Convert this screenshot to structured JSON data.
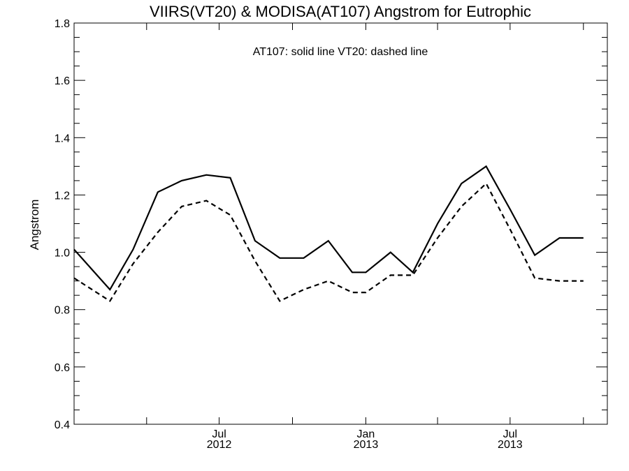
{
  "chart_data": {
    "type": "line",
    "title": "VIIRS(VT20) & MODISA(AT107)  Angstrom for Eutrophic",
    "annotation": "AT107: solid line   VT20: dashed line",
    "ylabel": "Angstrom",
    "xlabel": "",
    "ylim": [
      0.4,
      1.8
    ],
    "yticks": [
      0.4,
      0.6,
      0.8,
      1.0,
      1.2,
      1.4,
      1.6,
      1.8
    ],
    "ytick_labels": [
      "0.4",
      "0.6",
      "0.8",
      "1.0",
      "1.2",
      "1.4",
      "1.6",
      "1.8"
    ],
    "xlim": [
      "2012-01-01",
      "2013-10-31"
    ],
    "xticks": [
      {
        "date": "2012-07-01",
        "label1": "Jul",
        "label2": "2012"
      },
      {
        "date": "2013-01-01",
        "label1": "Jan",
        "label2": "2013"
      },
      {
        "date": "2013-07-01",
        "label1": "Jul",
        "label2": "2013"
      }
    ],
    "xminor_ticks": [
      "2012-04-01",
      "2012-07-01",
      "2012-10-01",
      "2013-01-01",
      "2013-04-01",
      "2013-07-01",
      "2013-10-01"
    ],
    "grid": false,
    "series": [
      {
        "name": "AT107",
        "style": "solid",
        "x": [
          "2012-01-01",
          "2012-02-15",
          "2012-03-15",
          "2012-04-15",
          "2012-05-15",
          "2012-06-15",
          "2012-07-15",
          "2012-08-15",
          "2012-09-15",
          "2012-10-15",
          "2012-11-15",
          "2012-12-15",
          "2013-01-01",
          "2013-02-01",
          "2013-03-01",
          "2013-04-01",
          "2013-05-01",
          "2013-06-01",
          "2013-07-01",
          "2013-08-01",
          "2013-09-01",
          "2013-10-01"
        ],
        "values": [
          1.01,
          0.87,
          1.01,
          1.21,
          1.25,
          1.27,
          1.26,
          1.04,
          0.98,
          0.98,
          1.04,
          0.93,
          0.93,
          1.0,
          0.93,
          1.1,
          1.24,
          1.3,
          1.15,
          0.99,
          1.05,
          1.05
        ]
      },
      {
        "name": "VT20",
        "style": "dashed",
        "x": [
          "2012-01-01",
          "2012-02-15",
          "2012-03-15",
          "2012-04-15",
          "2012-05-15",
          "2012-06-15",
          "2012-07-15",
          "2012-08-15",
          "2012-09-15",
          "2012-10-15",
          "2012-11-15",
          "2012-12-15",
          "2013-01-01",
          "2013-02-01",
          "2013-03-01",
          "2013-04-01",
          "2013-05-01",
          "2013-06-01",
          "2013-07-01",
          "2013-08-01",
          "2013-09-01",
          "2013-10-01"
        ],
        "values": [
          0.91,
          0.83,
          0.96,
          1.07,
          1.16,
          1.18,
          1.13,
          0.97,
          0.83,
          0.87,
          0.9,
          0.86,
          0.86,
          0.92,
          0.92,
          1.05,
          1.16,
          1.24,
          1.08,
          0.91,
          0.9,
          0.9
        ]
      }
    ]
  }
}
